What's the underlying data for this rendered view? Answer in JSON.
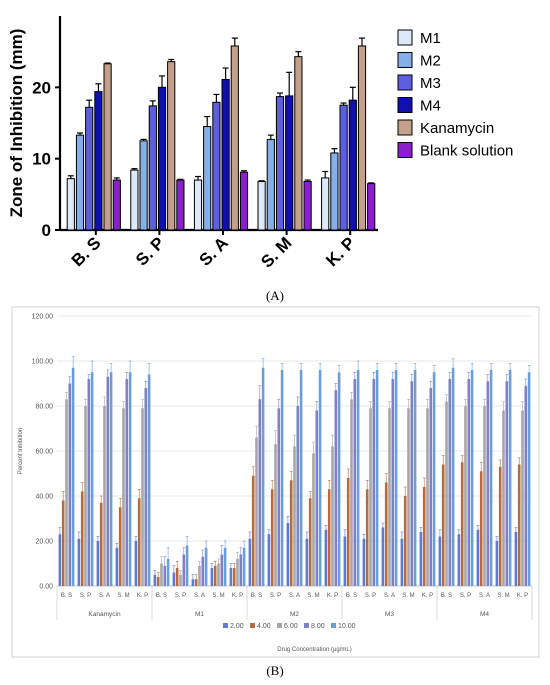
{
  "chart_data": [
    {
      "type": "bar",
      "panel_label": "(A)",
      "ylabel": "Zone of Inhibition (mm)",
      "xlabel": "",
      "ylim": [
        0,
        30
      ],
      "yticks": [
        0,
        10,
        20
      ],
      "categories": [
        "B. S",
        "S. P",
        "S. A",
        "S. M",
        "K. P"
      ],
      "legend_position": "right",
      "series": [
        {
          "name": "M1",
          "color": "#dde9f8",
          "values": [
            7.2,
            8.4,
            7.0,
            6.8,
            7.3
          ],
          "errors": [
            0.4,
            0.2,
            0.5,
            0.1,
            0.9
          ]
        },
        {
          "name": "M2",
          "color": "#86aee8",
          "values": [
            13.3,
            12.5,
            14.5,
            12.7,
            10.8
          ],
          "errors": [
            0.3,
            0.2,
            1.4,
            0.6,
            0.6
          ]
        },
        {
          "name": "M3",
          "color": "#5d5fe0",
          "values": [
            17.2,
            17.4,
            17.9,
            18.7,
            17.5
          ],
          "errors": [
            1.0,
            0.7,
            1.1,
            0.5,
            0.3
          ]
        },
        {
          "name": "M4",
          "color": "#1010b0",
          "values": [
            19.4,
            20.0,
            21.1,
            18.8,
            18.2
          ],
          "errors": [
            1.1,
            1.6,
            1.6,
            3.3,
            1.8
          ]
        },
        {
          "name": "Kanamycin",
          "color": "#c2a08c",
          "values": [
            23.3,
            23.6,
            25.8,
            24.3,
            25.8
          ],
          "errors": [
            0.1,
            0.3,
            1.1,
            0.7,
            1.1
          ]
        },
        {
          "name": "Blank solution",
          "color": "#8b1fd0",
          "values": [
            7.0,
            7.0,
            8.1,
            6.8,
            6.5
          ],
          "errors": [
            0.3,
            0.1,
            0.2,
            0.2,
            0.1
          ]
        }
      ]
    },
    {
      "type": "bar",
      "panel_label": "(B)",
      "ylabel": "Percent Inhibition",
      "xlabel": "Drug Concentration (µg/mL)",
      "ylim": [
        0,
        120
      ],
      "yticks": [
        "0.00",
        "20.00",
        "40.00",
        "60.00",
        "80.00",
        "100.00",
        "120.00"
      ],
      "grid": true,
      "legend_position": "bottom",
      "groups": [
        "Kanamycin",
        "M1",
        "M2",
        "M3",
        "M4"
      ],
      "categories": [
        "B. S",
        "S. P",
        "S. A",
        "S. M",
        "K. P"
      ],
      "series": [
        {
          "name": "2.00",
          "color": "#5b7bd5",
          "values": [
            [
              23,
              21,
              20,
              17,
              20
            ],
            [
              5,
              6,
              3,
              8,
              8
            ],
            [
              21,
              23,
              28,
              21,
              25
            ],
            [
              22,
              21,
              26,
              21,
              24
            ],
            [
              22,
              23,
              25,
              20,
              24
            ]
          ],
          "errors": [
            [
              3,
              3,
              2,
              2,
              2
            ],
            [
              2,
              3,
              2,
              2,
              2
            ],
            [
              3,
              2,
              3,
              3,
              2
            ],
            [
              3,
              2,
              2,
              3,
              2
            ],
            [
              3,
              2,
              2,
              2,
              2
            ]
          ]
        },
        {
          "name": "4.00",
          "color": "#b86a3c",
          "values": [
            [
              38,
              42,
              37,
              35,
              39
            ],
            [
              4,
              8,
              3,
              9,
              8
            ],
            [
              49,
              43,
              47,
              39,
              43
            ],
            [
              48,
              43,
              46,
              40,
              44
            ],
            [
              54,
              55,
              51,
              53,
              54
            ]
          ],
          "errors": [
            [
              4,
              4,
              3,
              4,
              4
            ],
            [
              2,
              3,
              2,
              2,
              2
            ],
            [
              4,
              4,
              4,
              3,
              4
            ],
            [
              4,
              4,
              4,
              4,
              4
            ],
            [
              4,
              3,
              4,
              3,
              3
            ]
          ]
        },
        {
          "name": "6.00",
          "color": "#a6a6a6",
          "values": [
            [
              83,
              80,
              80,
              79,
              79
            ],
            [
              10,
              5,
              9,
              10,
              12
            ],
            [
              66,
              63,
              62,
              59,
              62
            ],
            [
              83,
              79,
              79,
              79,
              79
            ],
            [
              82,
              80,
              80,
              78,
              78
            ]
          ],
          "errors": [
            [
              3,
              3,
              4,
              3,
              4
            ],
            [
              3,
              2,
              2,
              2,
              3
            ],
            [
              5,
              6,
              5,
              5,
              5
            ],
            [
              3,
              3,
              3,
              4,
              4
            ],
            [
              3,
              3,
              3,
              4,
              4
            ]
          ]
        },
        {
          "name": "8.00",
          "color": "#7f7fcc",
          "values": [
            [
              90,
              92,
              93,
              92,
              88
            ],
            [
              9,
              14,
              13,
              14,
              14
            ],
            [
              83,
              79,
              80,
              78,
              87
            ],
            [
              92,
              92,
              92,
              91,
              88
            ],
            [
              92,
              92,
              91,
              91,
              89
            ]
          ],
          "errors": [
            [
              3,
              2,
              3,
              3,
              3
            ],
            [
              4,
              3,
              3,
              4,
              3
            ],
            [
              6,
              4,
              4,
              4,
              3
            ],
            [
              3,
              3,
              3,
              3,
              3
            ],
            [
              3,
              3,
              3,
              3,
              3
            ]
          ]
        },
        {
          "name": "10.00",
          "color": "#6b9ed6",
          "values": [
            [
              97,
              95,
              95,
              95,
              94
            ],
            [
              12,
              18,
              17,
              17,
              17
            ],
            [
              97,
              96,
              96,
              96,
              95
            ],
            [
              96,
              96,
              96,
              96,
              95
            ],
            [
              97,
              96,
              96,
              96,
              95
            ]
          ],
          "errors": [
            [
              5,
              5,
              4,
              5,
              5
            ],
            [
              5,
              4,
              3,
              3,
              3
            ],
            [
              4,
              3,
              3,
              3,
              3
            ],
            [
              4,
              3,
              3,
              3,
              3
            ],
            [
              4,
              3,
              3,
              3,
              3
            ]
          ]
        }
      ]
    }
  ]
}
